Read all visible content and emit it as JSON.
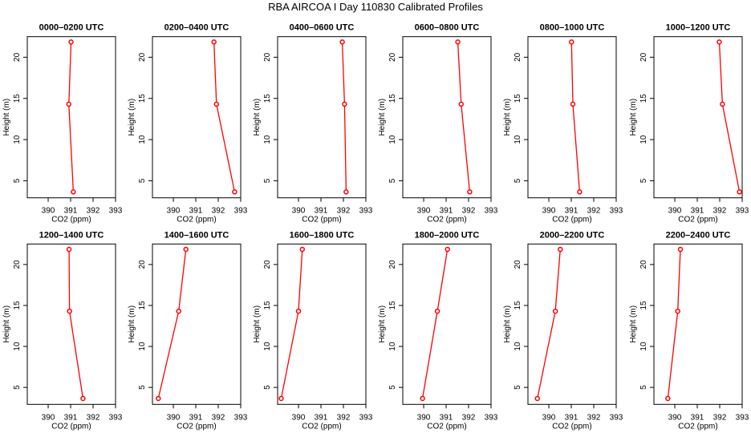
{
  "chart_data": {
    "type": "line",
    "title": "RBA AIRCOA I  Day 110830  Calibrated Profiles",
    "xlabel": "CO2 (ppm)",
    "ylabel": "Height (m)",
    "xlim": [
      389.07,
      393
    ],
    "ylim": [
      2.93,
      22.5
    ],
    "xticks": [
      390,
      391,
      392,
      393
    ],
    "yticks": [
      5,
      10,
      15,
      20
    ],
    "line_color": "#ff0000",
    "heights": [
      21.85,
      14.3,
      3.65
    ],
    "panels": [
      {
        "title": "0000–0200 UTC",
        "co2": [
          391.02,
          390.92,
          391.12
        ]
      },
      {
        "title": "0200–0400 UTC",
        "co2": [
          391.81,
          391.92,
          392.73
        ]
      },
      {
        "title": "0400–0600 UTC",
        "co2": [
          391.95,
          392.05,
          392.12
        ]
      },
      {
        "title": "0600–0800 UTC",
        "co2": [
          391.52,
          391.67,
          392.05
        ]
      },
      {
        "title": "0800–1000 UTC",
        "co2": [
          391.01,
          391.07,
          391.37
        ]
      },
      {
        "title": "1000–1200 UTC",
        "co2": [
          391.98,
          392.12,
          392.88
        ]
      },
      {
        "title": "1200–1400 UTC",
        "co2": [
          390.93,
          390.95,
          391.55
        ]
      },
      {
        "title": "1400–1600 UTC",
        "co2": [
          390.56,
          390.24,
          389.33
        ]
      },
      {
        "title": "1600–1800 UTC",
        "co2": [
          390.17,
          390.0,
          389.23
        ]
      },
      {
        "title": "1800–2000 UTC",
        "co2": [
          391.06,
          390.61,
          389.95
        ]
      },
      {
        "title": "2000–2200 UTC",
        "co2": [
          390.51,
          390.29,
          389.49
        ]
      },
      {
        "title": "2200–2400 UTC",
        "co2": [
          390.25,
          390.13,
          389.69
        ]
      }
    ]
  }
}
